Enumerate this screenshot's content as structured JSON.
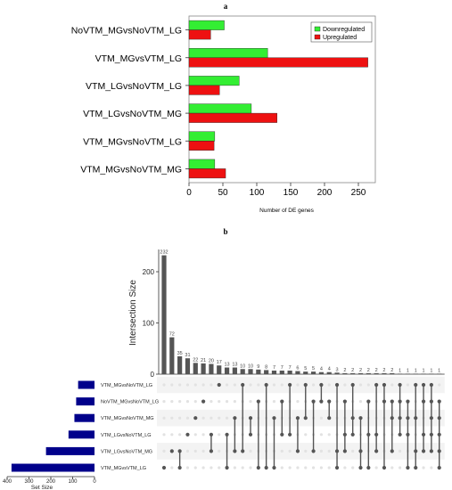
{
  "chart_data": [
    {
      "panel": "a",
      "type": "bar",
      "orientation": "horizontal",
      "categories": [
        "NoVTM_MGvsNoVTM_LG",
        "VTM_MGvsVTM_LG",
        "VTM_LGvsNoVTM_LG",
        "VTM_LGvsNoVTM_MG",
        "VTM_MGvsNoVTM_LG",
        "VTM_MGvsNoVTM_MG"
      ],
      "series": [
        {
          "name": "Downregulated",
          "color": "#33ee33",
          "values": [
            52,
            116,
            74,
            92,
            38,
            38
          ]
        },
        {
          "name": "Upregulated",
          "color": "#ee1111",
          "values": [
            32,
            264,
            45,
            130,
            37,
            54
          ]
        }
      ],
      "xlabel": "Number of DE genes",
      "xlim": [
        0,
        275
      ],
      "xticks": [
        "0",
        "50",
        "100",
        "150",
        "200",
        "250"
      ],
      "legend_position": "top-right"
    },
    {
      "panel": "b",
      "type": "upset",
      "ylabel": "Intersection Size",
      "ylim": [
        0,
        240
      ],
      "yticks": [
        "0",
        "100",
        "200"
      ],
      "bar_color": "#555555",
      "intersections": [
        {
          "size": 232,
          "label": "232",
          "sets": [
            5
          ]
        },
        {
          "size": 72,
          "label": "72",
          "sets": [
            4
          ]
        },
        {
          "size": 35,
          "label": "35",
          "sets": [
            5,
            4
          ]
        },
        {
          "size": 31,
          "label": "31",
          "sets": [
            3
          ]
        },
        {
          "size": 22,
          "label": "22",
          "sets": [
            2
          ]
        },
        {
          "size": 21,
          "label": "21",
          "sets": [
            1
          ]
        },
        {
          "size": 20,
          "label": "20",
          "sets": [
            4,
            3
          ]
        },
        {
          "size": 17,
          "label": "17",
          "sets": [
            0
          ]
        },
        {
          "size": 13,
          "label": "13",
          "sets": [
            5,
            3
          ]
        },
        {
          "size": 13,
          "label": "13",
          "sets": [
            4,
            2
          ]
        },
        {
          "size": 10,
          "label": "10",
          "sets": [
            0,
            4
          ]
        },
        {
          "size": 10,
          "label": "10",
          "sets": [
            3,
            2
          ]
        },
        {
          "size": 9,
          "label": "9",
          "sets": [
            1,
            5
          ]
        },
        {
          "size": 8,
          "label": "8",
          "sets": [
            0,
            5
          ]
        },
        {
          "size": 7,
          "label": "7",
          "sets": [
            2,
            5
          ]
        },
        {
          "size": 7,
          "label": "7",
          "sets": [
            1,
            3
          ]
        },
        {
          "size": 7,
          "label": "7",
          "sets": [
            0,
            3
          ]
        },
        {
          "size": 6,
          "label": "6",
          "sets": [
            2,
            4
          ]
        },
        {
          "size": 5,
          "label": "5",
          "sets": [
            0,
            2
          ]
        },
        {
          "size": 5,
          "label": "5",
          "sets": [
            1,
            4
          ]
        },
        {
          "size": 4,
          "label": "4",
          "sets": [
            0,
            1
          ]
        },
        {
          "size": 4,
          "label": "4",
          "sets": [
            1,
            2
          ]
        },
        {
          "size": 3,
          "label": "3",
          "sets": [
            0,
            5,
            4
          ]
        },
        {
          "size": 2,
          "label": "2",
          "sets": [
            1,
            4,
            3
          ]
        },
        {
          "size": 2,
          "label": "2",
          "sets": [
            0,
            3,
            2
          ]
        },
        {
          "size": 2,
          "label": "2",
          "sets": [
            2,
            5,
            4
          ]
        },
        {
          "size": 2,
          "label": "2",
          "sets": [
            1,
            5,
            3
          ]
        },
        {
          "size": 2,
          "label": "2",
          "sets": [
            0,
            4,
            3
          ]
        },
        {
          "size": 2,
          "label": "2",
          "sets": [
            0,
            1,
            5
          ]
        },
        {
          "size": 2,
          "label": "2",
          "sets": [
            1,
            2,
            4
          ]
        },
        {
          "size": 1,
          "label": "1",
          "sets": [
            0,
            1,
            2,
            3
          ]
        },
        {
          "size": 1,
          "label": "1",
          "sets": [
            1,
            2,
            3,
            5
          ]
        },
        {
          "size": 1,
          "label": "1",
          "sets": [
            0,
            2,
            4,
            5
          ]
        },
        {
          "size": 1,
          "label": "1",
          "sets": [
            0,
            1,
            3,
            4
          ]
        },
        {
          "size": 1,
          "label": "1",
          "sets": [
            0,
            1,
            2,
            3,
            4
          ]
        },
        {
          "size": 1,
          "label": "1",
          "sets": [
            1,
            2,
            3,
            4,
            5
          ]
        }
      ],
      "sets": [
        {
          "name": "VTM_MGvsNoVTM_LG",
          "size": 75
        },
        {
          "name": "NoVTM_MGvsNoVTM_LG",
          "size": 84
        },
        {
          "name": "VTM_MGvsNoVTM_MG",
          "size": 92
        },
        {
          "name": "VTM_LGvsNoVTM_LG",
          "size": 119
        },
        {
          "name": "VTM_LGvsNoVTM_MG",
          "size": 222
        },
        {
          "name": "VTM_MGvsVTM_LG",
          "size": 380
        }
      ],
      "set_size_label": "Set Size",
      "set_size_ticks": [
        "400",
        "300",
        "200",
        "100",
        "0"
      ],
      "set_size_lim": [
        0,
        400
      ],
      "set_bar_color": "#00008b"
    }
  ],
  "panel_labels": {
    "a": "a",
    "b": "b"
  }
}
